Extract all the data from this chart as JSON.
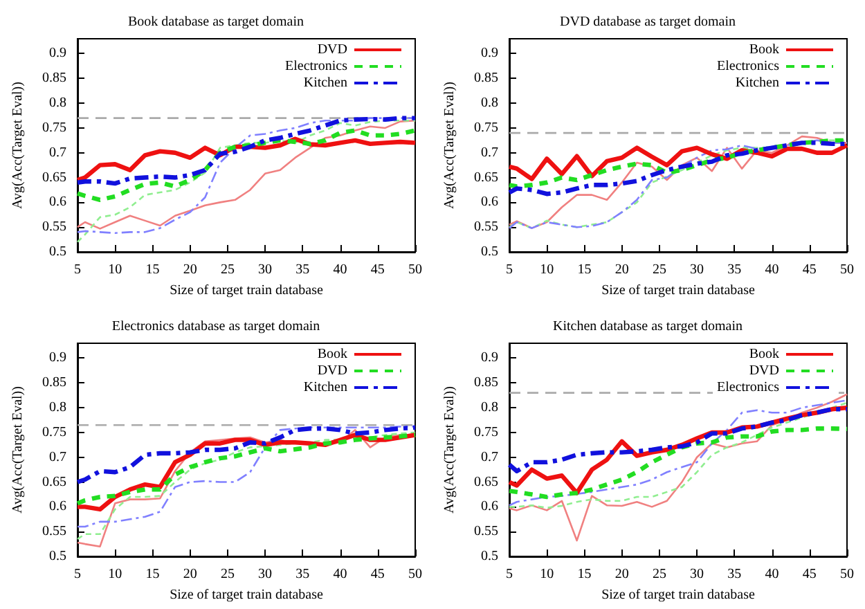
{
  "chart_data": [
    {
      "type": "line",
      "title": "Book database as target domain",
      "xlabel": "Size of target train database",
      "ylabel": "Avg(Acc(Target Eval))",
      "x": [
        5,
        6,
        8,
        10,
        12,
        14,
        16,
        18,
        20,
        22,
        24,
        26,
        28,
        30,
        32,
        34,
        36,
        38,
        40,
        42,
        44,
        46,
        48,
        50
      ],
      "xlim": [
        5,
        50
      ],
      "xticks": [
        5,
        10,
        15,
        20,
        25,
        30,
        35,
        40,
        45,
        50
      ],
      "ylim": [
        0.5,
        0.93
      ],
      "yticks": [
        0.5,
        0.55,
        0.6,
        0.65,
        0.7,
        0.75,
        0.8,
        0.85,
        0.9
      ],
      "grid": false,
      "legend": "top right",
      "marker": "none",
      "ref_lines": [
        {
          "axis": "y",
          "value": 0.77,
          "color": "#aaaaaa",
          "line_style": "dashed"
        }
      ],
      "series": [
        {
          "name": "DVD",
          "color": "#ee1111",
          "line_style": "solid",
          "values": [
            0.645,
            0.65,
            0.675,
            0.677,
            0.665,
            0.695,
            0.703,
            0.7,
            0.69,
            0.71,
            0.695,
            0.712,
            0.712,
            0.71,
            0.715,
            0.728,
            0.717,
            0.715,
            0.72,
            0.725,
            0.718,
            0.72,
            0.722,
            0.72
          ]
        },
        {
          "name": "Electronics",
          "color": "#22dd22",
          "line_style": "dotted",
          "values": [
            0.618,
            0.613,
            0.605,
            0.612,
            0.625,
            0.637,
            0.64,
            0.632,
            0.645,
            0.665,
            0.7,
            0.712,
            0.715,
            0.72,
            0.725,
            0.722,
            0.718,
            0.725,
            0.74,
            0.745,
            0.735,
            0.735,
            0.738,
            0.745
          ]
        },
        {
          "name": "Kitchen",
          "color": "#1111dd",
          "line_style": "dashed",
          "values": [
            0.64,
            0.642,
            0.642,
            0.638,
            0.648,
            0.65,
            0.652,
            0.65,
            0.655,
            0.665,
            0.698,
            0.702,
            0.712,
            0.725,
            0.73,
            0.738,
            0.745,
            0.755,
            0.765,
            0.767,
            0.768,
            0.767,
            0.77,
            0.77
          ]
        },
        {
          "color": "#f08080",
          "line_style": "solid",
          "values": [
            0.55,
            0.56,
            0.547,
            0.56,
            0.573,
            0.563,
            0.553,
            0.573,
            0.583,
            0.594,
            0.6,
            0.605,
            0.625,
            0.658,
            0.665,
            0.69,
            0.71,
            0.73,
            0.735,
            0.745,
            0.753,
            0.75,
            0.763,
            0.765
          ]
        },
        {
          "color": "#90ee90",
          "line_style": "dotted",
          "values": [
            0.52,
            0.535,
            0.57,
            0.575,
            0.59,
            0.615,
            0.62,
            0.625,
            0.64,
            0.66,
            0.71,
            0.715,
            0.72,
            0.72,
            0.725,
            0.72,
            0.735,
            0.745,
            0.76,
            0.755,
            0.762,
            0.765,
            0.765,
            0.765
          ]
        },
        {
          "color": "#8080ff",
          "line_style": "dashed",
          "values": [
            0.54,
            0.542,
            0.54,
            0.538,
            0.54,
            0.54,
            0.548,
            0.565,
            0.58,
            0.61,
            0.68,
            0.71,
            0.735,
            0.738,
            0.745,
            0.75,
            0.76,
            0.765,
            0.765,
            0.765,
            0.77,
            0.77,
            0.77,
            0.77
          ]
        }
      ]
    },
    {
      "type": "line",
      "title": "DVD database as target domain",
      "xlabel": "Size of target train database",
      "ylabel": "Avg(Acc(Target Eval))",
      "x": [
        5,
        6,
        8,
        10,
        12,
        14,
        16,
        18,
        20,
        22,
        24,
        26,
        28,
        30,
        32,
        34,
        36,
        38,
        40,
        42,
        44,
        46,
        48,
        50
      ],
      "xlim": [
        5,
        50
      ],
      "xticks": [
        5,
        10,
        15,
        20,
        25,
        30,
        35,
        40,
        45,
        50
      ],
      "ylim": [
        0.5,
        0.93
      ],
      "yticks": [
        0.5,
        0.55,
        0.6,
        0.65,
        0.7,
        0.75,
        0.8,
        0.85,
        0.9
      ],
      "grid": false,
      "legend": "top right",
      "marker": "none",
      "ref_lines": [
        {
          "axis": "y",
          "value": 0.74,
          "color": "#aaaaaa",
          "line_style": "dashed"
        }
      ],
      "series": [
        {
          "name": "Book",
          "color": "#ee1111",
          "line_style": "solid",
          "values": [
            0.672,
            0.668,
            0.647,
            0.688,
            0.657,
            0.693,
            0.653,
            0.683,
            0.69,
            0.71,
            0.692,
            0.675,
            0.703,
            0.71,
            0.697,
            0.688,
            0.705,
            0.7,
            0.693,
            0.708,
            0.708,
            0.7,
            0.7,
            0.715
          ]
        },
        {
          "name": "Electronics",
          "color": "#22dd22",
          "line_style": "dotted",
          "values": [
            0.635,
            0.632,
            0.635,
            0.64,
            0.65,
            0.645,
            0.655,
            0.665,
            0.672,
            0.678,
            0.675,
            0.66,
            0.665,
            0.675,
            0.685,
            0.69,
            0.7,
            0.705,
            0.71,
            0.715,
            0.72,
            0.722,
            0.725,
            0.725
          ]
        },
        {
          "name": "Kitchen",
          "color": "#1111dd",
          "line_style": "dashed",
          "values": [
            0.62,
            0.628,
            0.625,
            0.617,
            0.62,
            0.628,
            0.635,
            0.635,
            0.638,
            0.643,
            0.655,
            0.665,
            0.672,
            0.678,
            0.682,
            0.695,
            0.698,
            0.705,
            0.71,
            0.715,
            0.72,
            0.72,
            0.718,
            0.718
          ]
        },
        {
          "color": "#f08080",
          "line_style": "solid",
          "values": [
            0.555,
            0.562,
            0.548,
            0.56,
            0.59,
            0.615,
            0.615,
            0.605,
            0.64,
            0.68,
            0.672,
            0.645,
            0.675,
            0.69,
            0.663,
            0.71,
            0.668,
            0.705,
            0.7,
            0.715,
            0.733,
            0.73,
            0.72,
            0.72
          ]
        },
        {
          "color": "#90ee90",
          "line_style": "dotted",
          "values": [
            0.55,
            0.56,
            0.548,
            0.563,
            0.555,
            0.55,
            0.555,
            0.56,
            0.58,
            0.6,
            0.64,
            0.652,
            0.665,
            0.68,
            0.695,
            0.705,
            0.71,
            0.71,
            0.71,
            0.712,
            0.72,
            0.725,
            0.725,
            0.725
          ]
        },
        {
          "color": "#8080ff",
          "line_style": "dashed",
          "values": [
            0.548,
            0.56,
            0.548,
            0.56,
            0.555,
            0.55,
            0.552,
            0.56,
            0.58,
            0.605,
            0.645,
            0.65,
            0.672,
            0.69,
            0.705,
            0.707,
            0.715,
            0.708,
            0.712,
            0.715,
            0.72,
            0.725,
            0.72,
            0.72
          ]
        }
      ]
    },
    {
      "type": "line",
      "title": "Electronics database as target domain",
      "xlabel": "Size of target train database",
      "ylabel": "Avg(Acc(Target Eval))",
      "x": [
        5,
        6,
        8,
        10,
        12,
        14,
        16,
        18,
        20,
        22,
        24,
        26,
        28,
        30,
        32,
        34,
        36,
        38,
        40,
        42,
        44,
        46,
        48,
        50
      ],
      "xlim": [
        5,
        50
      ],
      "xticks": [
        5,
        10,
        15,
        20,
        25,
        30,
        35,
        40,
        45,
        50
      ],
      "ylim": [
        0.5,
        0.93
      ],
      "yticks": [
        0.5,
        0.55,
        0.6,
        0.65,
        0.7,
        0.75,
        0.8,
        0.85,
        0.9
      ],
      "grid": false,
      "legend": "top right",
      "marker": "none",
      "ref_lines": [
        {
          "axis": "y",
          "value": 0.765,
          "color": "#aaaaaa",
          "line_style": "dashed"
        }
      ],
      "series": [
        {
          "name": "Book",
          "color": "#ee1111",
          "line_style": "solid",
          "values": [
            0.6,
            0.6,
            0.595,
            0.62,
            0.635,
            0.645,
            0.64,
            0.69,
            0.705,
            0.728,
            0.728,
            0.735,
            0.735,
            0.725,
            0.73,
            0.73,
            0.728,
            0.725,
            0.735,
            0.745,
            0.735,
            0.735,
            0.74,
            0.745
          ]
        },
        {
          "name": "DVD",
          "color": "#22dd22",
          "line_style": "dotted",
          "values": [
            0.607,
            0.613,
            0.62,
            0.622,
            0.63,
            0.635,
            0.635,
            0.665,
            0.68,
            0.69,
            0.698,
            0.702,
            0.71,
            0.718,
            0.712,
            0.716,
            0.72,
            0.728,
            0.73,
            0.735,
            0.738,
            0.74,
            0.742,
            0.745
          ]
        },
        {
          "name": "Kitchen",
          "color": "#1111dd",
          "line_style": "dashed",
          "values": [
            0.65,
            0.655,
            0.672,
            0.67,
            0.68,
            0.705,
            0.708,
            0.708,
            0.71,
            0.715,
            0.715,
            0.718,
            0.73,
            0.728,
            0.74,
            0.755,
            0.758,
            0.758,
            0.755,
            0.748,
            0.75,
            0.755,
            0.758,
            0.76
          ]
        },
        {
          "color": "#f08080",
          "line_style": "solid",
          "values": [
            0.528,
            0.525,
            0.52,
            0.607,
            0.615,
            0.615,
            0.617,
            0.672,
            0.71,
            0.732,
            0.735,
            0.738,
            0.74,
            0.73,
            0.735,
            0.728,
            0.73,
            0.725,
            0.73,
            0.755,
            0.72,
            0.74,
            0.745,
            0.745
          ]
        },
        {
          "color": "#90ee90",
          "line_style": "dotted",
          "values": [
            0.535,
            0.545,
            0.545,
            0.595,
            0.62,
            0.62,
            0.622,
            0.65,
            0.675,
            0.688,
            0.695,
            0.71,
            0.72,
            0.722,
            0.725,
            0.728,
            0.73,
            0.735,
            0.735,
            0.74,
            0.74,
            0.745,
            0.748,
            0.75
          ]
        },
        {
          "color": "#8080ff",
          "line_style": "dashed",
          "values": [
            0.56,
            0.56,
            0.57,
            0.57,
            0.575,
            0.58,
            0.59,
            0.64,
            0.65,
            0.652,
            0.65,
            0.65,
            0.67,
            0.72,
            0.755,
            0.758,
            0.76,
            0.76,
            0.76,
            0.76,
            0.76,
            0.76,
            0.762,
            0.762
          ]
        }
      ]
    },
    {
      "type": "line",
      "title": "Kitchen database as target domain",
      "xlabel": "Size of target train database",
      "ylabel": "Avg(Acc(Target Eval))",
      "x": [
        5,
        6,
        8,
        10,
        12,
        14,
        16,
        18,
        20,
        22,
        24,
        26,
        28,
        30,
        32,
        34,
        36,
        38,
        40,
        42,
        44,
        46,
        48,
        50
      ],
      "xlim": [
        5,
        50
      ],
      "xticks": [
        5,
        10,
        15,
        20,
        25,
        30,
        35,
        40,
        45,
        50
      ],
      "ylim": [
        0.5,
        0.93
      ],
      "yticks": [
        0.5,
        0.55,
        0.6,
        0.65,
        0.7,
        0.75,
        0.8,
        0.85,
        0.9
      ],
      "grid": false,
      "legend": "top right",
      "marker": "none",
      "ref_lines": [
        {
          "axis": "y",
          "value": 0.83,
          "color": "#aaaaaa",
          "line_style": "dashed"
        }
      ],
      "series": [
        {
          "name": "Book",
          "color": "#ee1111",
          "line_style": "solid",
          "values": [
            0.65,
            0.643,
            0.675,
            0.657,
            0.663,
            0.628,
            0.675,
            0.695,
            0.732,
            0.703,
            0.71,
            0.715,
            0.725,
            0.738,
            0.75,
            0.75,
            0.76,
            0.762,
            0.77,
            0.778,
            0.785,
            0.79,
            0.797,
            0.8
          ]
        },
        {
          "name": "DVD",
          "color": "#22dd22",
          "line_style": "dotted",
          "values": [
            0.632,
            0.63,
            0.625,
            0.62,
            0.625,
            0.628,
            0.635,
            0.645,
            0.655,
            0.67,
            0.69,
            0.705,
            0.72,
            0.728,
            0.73,
            0.74,
            0.742,
            0.742,
            0.752,
            0.755,
            0.755,
            0.758,
            0.758,
            0.757
          ]
        },
        {
          "name": "Electronics",
          "color": "#1111dd",
          "line_style": "dashed",
          "values": [
            0.685,
            0.672,
            0.69,
            0.69,
            0.695,
            0.705,
            0.708,
            0.71,
            0.71,
            0.712,
            0.715,
            0.72,
            0.722,
            0.73,
            0.748,
            0.748,
            0.758,
            0.762,
            0.77,
            0.775,
            0.785,
            0.79,
            0.797,
            0.797
          ]
        },
        {
          "color": "#f08080",
          "line_style": "solid",
          "values": [
            0.597,
            0.593,
            0.603,
            0.593,
            0.612,
            0.532,
            0.622,
            0.603,
            0.602,
            0.61,
            0.6,
            0.612,
            0.65,
            0.7,
            0.728,
            0.72,
            0.728,
            0.732,
            0.765,
            0.775,
            0.79,
            0.8,
            0.812,
            0.827
          ]
        },
        {
          "color": "#90ee90",
          "line_style": "dotted",
          "values": [
            0.6,
            0.6,
            0.603,
            0.598,
            0.602,
            0.61,
            0.615,
            0.612,
            0.612,
            0.62,
            0.62,
            0.63,
            0.64,
            0.67,
            0.705,
            0.72,
            0.73,
            0.745,
            0.76,
            0.77,
            0.78,
            0.79,
            0.8,
            0.81
          ]
        },
        {
          "color": "#8080ff",
          "line_style": "dashed",
          "values": [
            0.603,
            0.61,
            0.615,
            0.62,
            0.622,
            0.626,
            0.63,
            0.635,
            0.64,
            0.645,
            0.655,
            0.67,
            0.68,
            0.69,
            0.728,
            0.755,
            0.79,
            0.795,
            0.79,
            0.79,
            0.8,
            0.805,
            0.81,
            0.815
          ]
        }
      ]
    }
  ]
}
